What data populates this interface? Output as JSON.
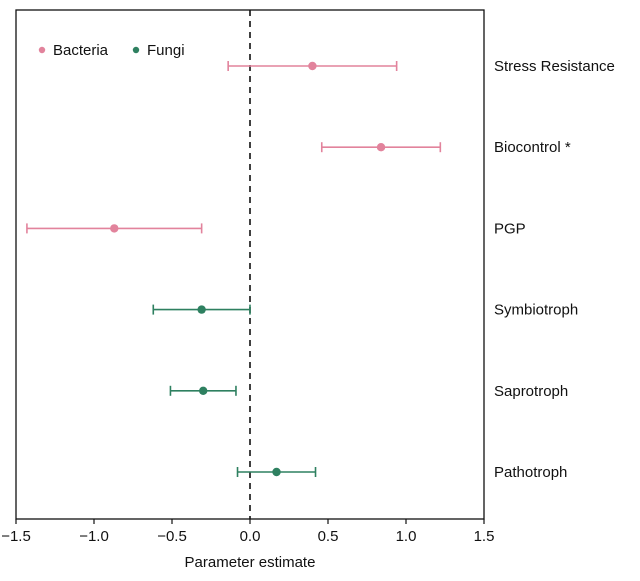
{
  "chart_data": {
    "type": "scatter",
    "subtype": "forest-plot",
    "title": "",
    "xlabel": "Parameter estimate",
    "ylabel": "",
    "xlim": [
      -1.5,
      1.5
    ],
    "xticks": [
      -1.5,
      -1.0,
      -0.5,
      0.0,
      0.5,
      1.0,
      1.5
    ],
    "xtick_labels": [
      "−1.5",
      "−1.0",
      "−0.5",
      "0.0",
      "0.5",
      "1.0",
      "1.5"
    ],
    "reference_line": {
      "x": 0,
      "style": "dashed",
      "color": "#111111"
    },
    "grid": false,
    "legend": {
      "position": "top-left",
      "entries": [
        {
          "name": "Bacteria",
          "color": "#e2839c"
        },
        {
          "name": "Fungi",
          "color": "#2e8060"
        }
      ]
    },
    "categories": [
      "Stress Resistance",
      "Biocontrol *",
      "PGP",
      "Symbiotroph",
      "Saprotroph",
      "Pathotroph"
    ],
    "points": [
      {
        "label": "Stress Resistance",
        "group": "Bacteria",
        "estimate": 0.4,
        "ci_low": -0.14,
        "ci_high": 0.94
      },
      {
        "label": "Biocontrol *",
        "group": "Bacteria",
        "estimate": 0.84,
        "ci_low": 0.46,
        "ci_high": 1.22
      },
      {
        "label": "PGP",
        "group": "Bacteria",
        "estimate": -0.87,
        "ci_low": -1.43,
        "ci_high": -0.31
      },
      {
        "label": "Symbiotroph",
        "group": "Fungi",
        "estimate": -0.31,
        "ci_low": -0.62,
        "ci_high": 0.0
      },
      {
        "label": "Saprotroph",
        "group": "Fungi",
        "estimate": -0.3,
        "ci_low": -0.51,
        "ci_high": -0.09
      },
      {
        "label": "Pathotroph",
        "group": "Fungi",
        "estimate": 0.17,
        "ci_low": -0.08,
        "ci_high": 0.42
      }
    ]
  }
}
